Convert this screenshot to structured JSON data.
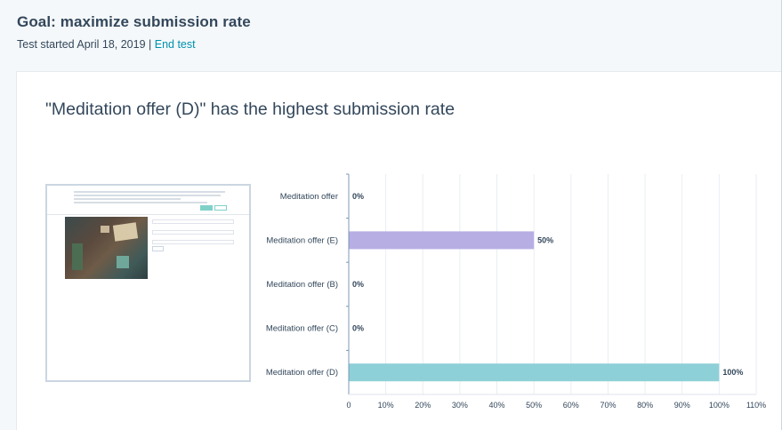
{
  "header": {
    "title": "Goal: maximize submission rate",
    "started": "Test started April 18, 2019",
    "separator": "|",
    "end_test_label": "End test"
  },
  "card": {
    "headline": "\"Meditation offer (D)\" has the highest submission rate"
  },
  "colors": {
    "bar_e": "#b7aee4",
    "bar_d": "#8ed0d8",
    "link": "#0091ae",
    "axis": "#7c98b6"
  },
  "chart_data": {
    "type": "bar",
    "orientation": "horizontal",
    "categories": [
      "Meditation offer",
      "Meditation offer (E)",
      "Meditation offer (B)",
      "Meditation offer (C)",
      "Meditation offer (D)"
    ],
    "values": [
      0,
      50,
      0,
      0,
      100
    ],
    "value_labels": [
      "0%",
      "50%",
      "0%",
      "0%",
      "100%"
    ],
    "bar_colors": [
      "#b7aee4",
      "#b7aee4",
      "#b7aee4",
      "#b7aee4",
      "#8ed0d8"
    ],
    "xlim": [
      0,
      110
    ],
    "ticks": [
      0,
      10,
      20,
      30,
      40,
      50,
      60,
      70,
      80,
      90,
      100,
      110
    ],
    "tick_labels": [
      "0",
      "10%",
      "20%",
      "30%",
      "40%",
      "50%",
      "60%",
      "70%",
      "80%",
      "90%",
      "100%",
      "110%"
    ],
    "grid": true
  }
}
